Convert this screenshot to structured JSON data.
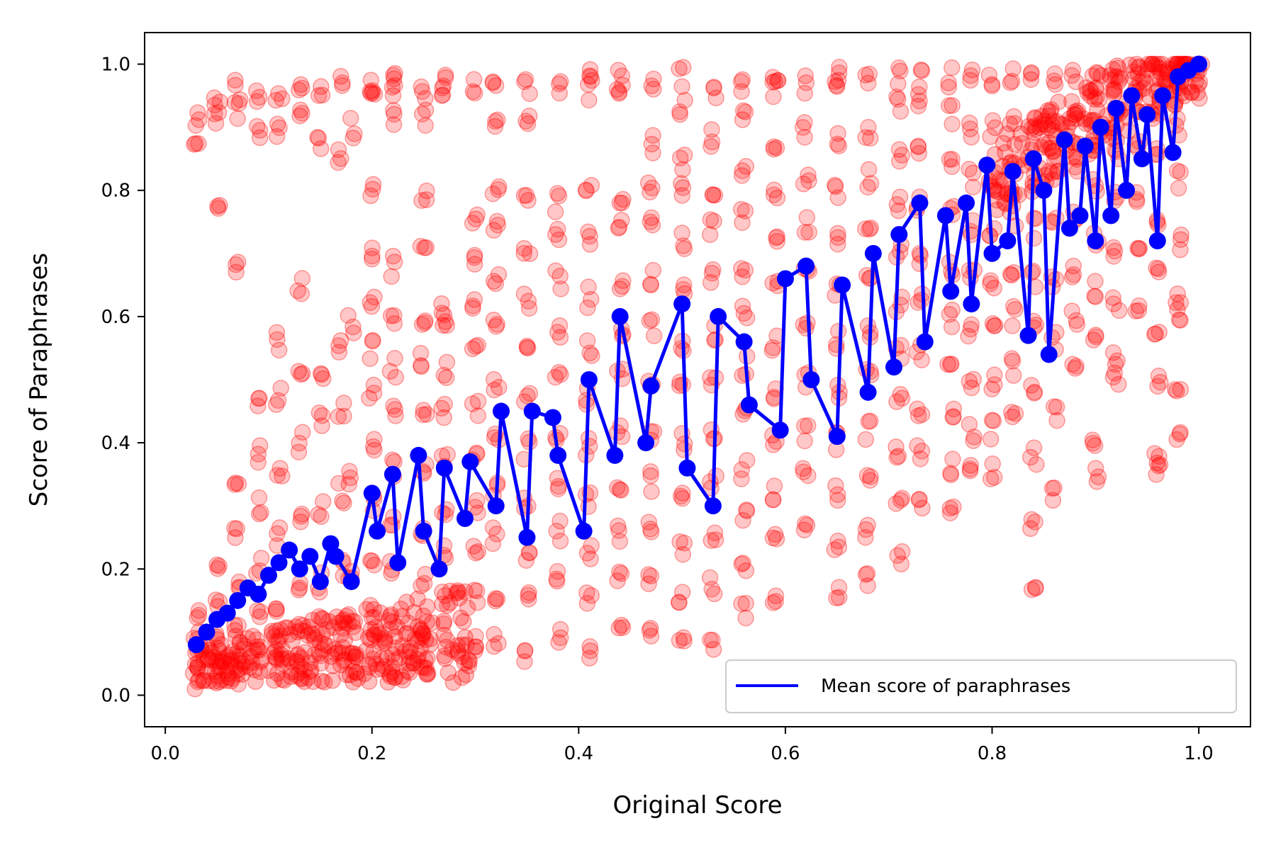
{
  "chart_data": {
    "type": "scatter",
    "xlabel": "Original Score",
    "ylabel": "Score of Paraphrases",
    "xlim": [
      -0.02,
      1.05
    ],
    "ylim": [
      -0.05,
      1.05
    ],
    "xticks": [
      0.0,
      0.2,
      0.4,
      0.6,
      0.8,
      1.0
    ],
    "yticks": [
      0.0,
      0.2,
      0.4,
      0.6,
      0.8,
      1.0
    ],
    "xtick_labels": [
      "0.0",
      "0.2",
      "0.4",
      "0.6",
      "0.8",
      "1.0"
    ],
    "ytick_labels": [
      "0.0",
      "0.2",
      "0.4",
      "0.6",
      "0.8",
      "1.0"
    ],
    "grid": false,
    "legend": {
      "position": "lower-right",
      "entries": [
        {
          "label": "Mean score of paraphrases",
          "color": "#0000ff"
        }
      ]
    },
    "colors": {
      "scatter": "#ff0000",
      "mean": "#0000ff"
    },
    "scatter_description_columns": [
      {
        "x": 0.03,
        "ys": [
          0.02,
          0.04,
          0.06,
          0.09,
          0.12,
          0.88,
          0.91
        ]
      },
      {
        "x": 0.05,
        "ys": [
          0.03,
          0.06,
          0.1,
          0.15,
          0.2,
          0.78,
          0.91,
          0.95
        ]
      },
      {
        "x": 0.07,
        "ys": [
          0.03,
          0.07,
          0.12,
          0.18,
          0.25,
          0.32,
          0.68,
          0.93,
          0.96
        ]
      },
      {
        "x": 0.09,
        "ys": [
          0.04,
          0.08,
          0.13,
          0.2,
          0.3,
          0.38,
          0.47,
          0.9,
          0.95
        ]
      },
      {
        "x": 0.11,
        "ys": [
          0.05,
          0.09,
          0.15,
          0.25,
          0.35,
          0.47,
          0.56,
          0.9,
          0.96
        ]
      },
      {
        "x": 0.13,
        "ys": [
          0.05,
          0.1,
          0.17,
          0.27,
          0.4,
          0.5,
          0.65,
          0.92,
          0.97
        ]
      },
      {
        "x": 0.15,
        "ys": [
          0.06,
          0.11,
          0.18,
          0.3,
          0.44,
          0.5,
          0.88,
          0.96
        ]
      },
      {
        "x": 0.17,
        "ys": [
          0.07,
          0.12,
          0.2,
          0.32,
          0.45,
          0.56,
          0.86,
          0.97
        ]
      },
      {
        "x": 0.18,
        "ys": [
          0.05,
          0.12,
          0.2,
          0.35,
          0.59,
          0.9
        ]
      },
      {
        "x": 0.2,
        "ys": [
          0.06,
          0.13,
          0.2,
          0.3,
          0.4,
          0.48,
          0.55,
          0.62,
          0.7,
          0.8,
          0.95,
          0.97
        ]
      },
      {
        "x": 0.22,
        "ys": [
          0.05,
          0.12,
          0.2,
          0.28,
          0.36,
          0.45,
          0.52,
          0.6,
          0.68,
          0.92,
          0.96,
          0.98
        ]
      },
      {
        "x": 0.25,
        "ys": [
          0.04,
          0.1,
          0.18,
          0.26,
          0.35,
          0.44,
          0.53,
          0.6,
          0.7,
          0.8,
          0.92,
          0.96
        ]
      },
      {
        "x": 0.27,
        "ys": [
          0.07,
          0.15,
          0.22,
          0.3,
          0.38,
          0.45,
          0.52,
          0.58,
          0.62,
          0.96,
          0.97
        ]
      },
      {
        "x": 0.3,
        "ys": [
          0.08,
          0.15,
          0.22,
          0.3,
          0.38,
          0.46,
          0.54,
          0.62,
          0.7,
          0.75,
          0.97
        ]
      },
      {
        "x": 0.32,
        "ys": [
          0.08,
          0.16,
          0.25,
          0.33,
          0.42,
          0.5,
          0.58,
          0.66,
          0.74,
          0.8,
          0.9,
          0.97
        ]
      },
      {
        "x": 0.35,
        "ys": [
          0.07,
          0.15,
          0.23,
          0.31,
          0.39,
          0.47,
          0.55,
          0.63,
          0.71,
          0.78,
          0.92,
          0.97
        ]
      },
      {
        "x": 0.38,
        "ys": [
          0.1,
          0.18,
          0.26,
          0.34,
          0.42,
          0.5,
          0.58,
          0.66,
          0.73,
          0.78,
          0.96
        ]
      },
      {
        "x": 0.41,
        "ys": [
          0.07,
          0.15,
          0.23,
          0.31,
          0.39,
          0.47,
          0.55,
          0.63,
          0.72,
          0.8,
          0.96,
          0.98
        ]
      },
      {
        "x": 0.44,
        "ys": [
          0.1,
          0.18,
          0.26,
          0.34,
          0.42,
          0.5,
          0.58,
          0.66,
          0.74,
          0.78,
          0.96,
          0.98
        ]
      },
      {
        "x": 0.47,
        "ys": [
          0.1,
          0.18,
          0.26,
          0.34,
          0.42,
          0.5,
          0.58,
          0.66,
          0.74,
          0.8,
          0.87,
          0.97
        ]
      },
      {
        "x": 0.5,
        "ys": [
          0.08,
          0.16,
          0.24,
          0.32,
          0.4,
          0.48,
          0.56,
          0.64,
          0.72,
          0.8,
          0.84,
          0.93,
          0.98
        ]
      },
      {
        "x": 0.53,
        "ys": [
          0.09,
          0.17,
          0.25,
          0.33,
          0.41,
          0.5,
          0.58,
          0.66,
          0.74,
          0.8,
          0.88,
          0.96
        ]
      },
      {
        "x": 0.56,
        "ys": [
          0.13,
          0.2,
          0.28,
          0.36,
          0.44,
          0.52,
          0.6,
          0.68,
          0.76,
          0.84,
          0.92,
          0.97
        ]
      },
      {
        "x": 0.59,
        "ys": [
          0.16,
          0.24,
          0.32,
          0.4,
          0.48,
          0.56,
          0.64,
          0.72,
          0.8,
          0.88,
          0.96,
          0.98
        ]
      },
      {
        "x": 0.62,
        "ys": [
          0.27,
          0.35,
          0.42,
          0.5,
          0.58,
          0.66,
          0.74,
          0.82,
          0.9,
          0.97
        ]
      },
      {
        "x": 0.65,
        "ys": [
          0.16,
          0.24,
          0.32,
          0.4,
          0.48,
          0.56,
          0.64,
          0.72,
          0.8,
          0.88,
          0.96,
          0.98
        ]
      },
      {
        "x": 0.68,
        "ys": [
          0.18,
          0.26,
          0.34,
          0.42,
          0.5,
          0.58,
          0.66,
          0.74,
          0.82,
          0.9,
          0.98
        ]
      },
      {
        "x": 0.71,
        "ys": [
          0.22,
          0.3,
          0.38,
          0.46,
          0.54,
          0.62,
          0.7,
          0.78,
          0.86,
          0.94,
          0.98
        ]
      },
      {
        "x": 0.73,
        "ys": [
          0.3,
          0.38,
          0.46,
          0.54,
          0.62,
          0.7,
          0.78,
          0.86,
          0.94,
          0.98
        ]
      },
      {
        "x": 0.76,
        "ys": [
          0.3,
          0.36,
          0.44,
          0.52,
          0.6,
          0.68,
          0.76,
          0.84,
          0.92,
          0.98
        ]
      },
      {
        "x": 0.78,
        "ys": [
          0.35,
          0.42,
          0.5,
          0.58,
          0.66,
          0.74,
          0.82,
          0.9,
          0.98
        ]
      },
      {
        "x": 0.8,
        "ys": [
          0.35,
          0.42,
          0.5,
          0.58,
          0.66,
          0.74,
          0.82,
          0.9,
          0.98
        ]
      },
      {
        "x": 0.82,
        "ys": [
          0.45,
          0.52,
          0.6,
          0.68,
          0.76,
          0.84,
          0.92,
          0.98
        ]
      },
      {
        "x": 0.84,
        "ys": [
          0.18,
          0.27,
          0.38,
          0.48,
          0.58,
          0.66,
          0.74,
          0.82,
          0.9,
          0.98
        ]
      },
      {
        "x": 0.86,
        "ys": [
          0.32,
          0.44,
          0.56,
          0.66,
          0.76,
          0.84,
          0.92,
          0.98
        ]
      },
      {
        "x": 0.88,
        "ys": [
          0.52,
          0.6,
          0.68,
          0.76,
          0.84,
          0.92,
          0.98
        ]
      },
      {
        "x": 0.9,
        "ys": [
          0.35,
          0.41,
          0.56,
          0.64,
          0.72,
          0.8,
          0.88,
          0.96,
          0.99
        ]
      },
      {
        "x": 0.92,
        "ys": [
          0.5,
          0.53,
          0.62,
          0.7,
          0.78,
          0.86,
          0.94,
          0.99
        ]
      },
      {
        "x": 0.94,
        "ys": [
          0.62,
          0.7,
          0.78,
          0.86,
          0.94,
          0.99
        ]
      },
      {
        "x": 0.96,
        "ys": [
          0.35,
          0.38,
          0.5,
          0.56,
          0.66,
          0.76,
          0.86,
          0.94,
          0.99
        ]
      },
      {
        "x": 0.98,
        "ys": [
          0.41,
          0.47,
          0.6,
          0.62,
          0.72,
          0.82,
          0.9,
          0.96,
          0.99
        ]
      },
      {
        "x": 1.0,
        "ys": [
          0.96,
          0.98,
          1.0
        ]
      }
    ],
    "series": [
      {
        "name": "Mean score of paraphrases",
        "type": "line",
        "x": [
          0.03,
          0.04,
          0.05,
          0.06,
          0.07,
          0.08,
          0.09,
          0.1,
          0.11,
          0.12,
          0.13,
          0.14,
          0.15,
          0.16,
          0.165,
          0.18,
          0.2,
          0.205,
          0.22,
          0.225,
          0.245,
          0.25,
          0.265,
          0.27,
          0.29,
          0.295,
          0.32,
          0.325,
          0.35,
          0.355,
          0.375,
          0.38,
          0.405,
          0.41,
          0.435,
          0.44,
          0.465,
          0.47,
          0.5,
          0.505,
          0.53,
          0.535,
          0.56,
          0.565,
          0.595,
          0.6,
          0.62,
          0.625,
          0.65,
          0.655,
          0.68,
          0.685,
          0.705,
          0.71,
          0.73,
          0.735,
          0.755,
          0.76,
          0.775,
          0.78,
          0.795,
          0.8,
          0.815,
          0.82,
          0.835,
          0.84,
          0.85,
          0.855,
          0.87,
          0.875,
          0.885,
          0.89,
          0.9,
          0.905,
          0.915,
          0.92,
          0.93,
          0.935,
          0.945,
          0.95,
          0.96,
          0.965,
          0.975,
          0.98,
          0.99,
          1.0
        ],
        "y": [
          0.08,
          0.1,
          0.12,
          0.13,
          0.15,
          0.17,
          0.16,
          0.19,
          0.21,
          0.23,
          0.2,
          0.22,
          0.18,
          0.24,
          0.22,
          0.18,
          0.32,
          0.26,
          0.35,
          0.21,
          0.38,
          0.26,
          0.2,
          0.36,
          0.28,
          0.37,
          0.3,
          0.45,
          0.25,
          0.45,
          0.44,
          0.38,
          0.26,
          0.5,
          0.38,
          0.6,
          0.4,
          0.49,
          0.62,
          0.36,
          0.3,
          0.6,
          0.56,
          0.46,
          0.42,
          0.66,
          0.68,
          0.5,
          0.41,
          0.65,
          0.48,
          0.7,
          0.52,
          0.73,
          0.78,
          0.56,
          0.76,
          0.64,
          0.78,
          0.62,
          0.84,
          0.7,
          0.72,
          0.83,
          0.57,
          0.85,
          0.8,
          0.54,
          0.88,
          0.74,
          0.76,
          0.87,
          0.72,
          0.9,
          0.76,
          0.93,
          0.8,
          0.95,
          0.85,
          0.92,
          0.72,
          0.95,
          0.86,
          0.98,
          0.99,
          1.0
        ]
      }
    ]
  }
}
